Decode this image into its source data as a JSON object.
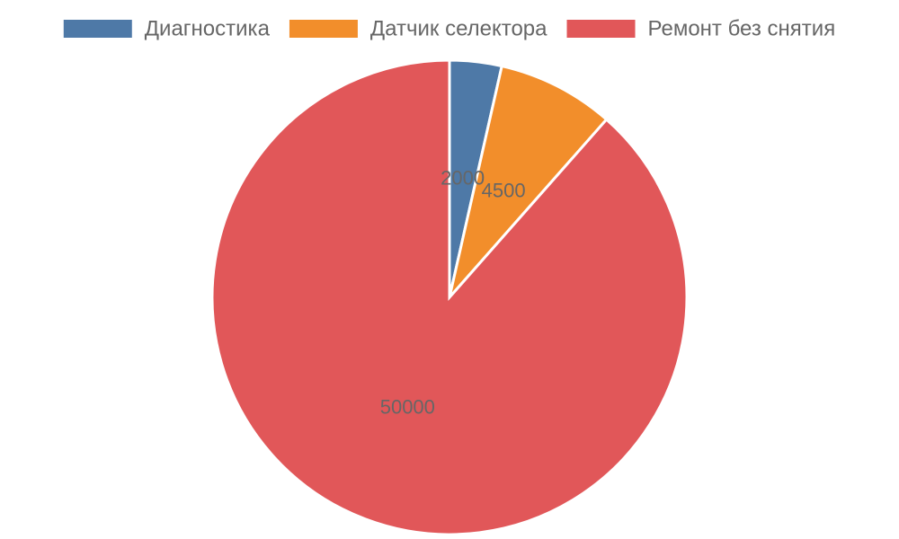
{
  "chart_data": {
    "type": "pie",
    "categories": [
      "Диагностика",
      "Датчик селектора",
      "Ремонт без снятия"
    ],
    "values": [
      2000,
      4500,
      50000
    ],
    "colors": [
      "#4e79a7",
      "#f28e2b",
      "#e15759"
    ],
    "legend": "top"
  }
}
